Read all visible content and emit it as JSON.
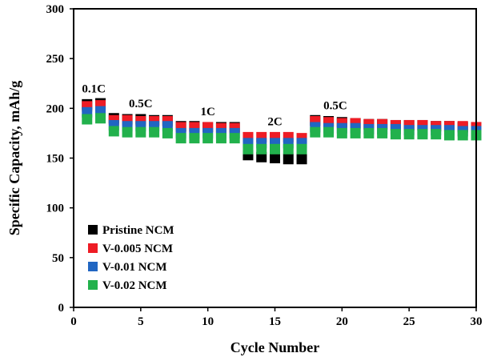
{
  "chart_data": {
    "type": "scatter",
    "xlabel": "Cycle Number",
    "ylabel": "Specific Capacity, mAh/g",
    "xlim": [
      0,
      30
    ],
    "ylim": [
      0,
      300
    ],
    "xticks": [
      0,
      5,
      10,
      15,
      20,
      25,
      30
    ],
    "yticks": [
      0,
      50,
      100,
      150,
      200,
      250,
      300
    ],
    "grid": false,
    "legend_position": "bottom-left",
    "x": [
      1,
      2,
      3,
      4,
      5,
      6,
      7,
      8,
      9,
      10,
      11,
      12,
      13,
      14,
      15,
      16,
      17,
      18,
      19,
      20,
      21,
      22,
      23,
      24,
      25,
      26,
      27,
      28,
      29,
      30
    ],
    "series": [
      {
        "name": "Pristine NCM",
        "color": "#000000",
        "values": [
          204,
          205,
          190,
          189,
          189,
          188,
          188,
          182,
          182,
          181,
          181,
          181,
          153,
          151,
          150,
          149,
          149,
          188,
          187,
          186,
          185,
          184,
          184,
          183,
          183,
          183,
          182,
          182,
          181,
          181
        ]
      },
      {
        "name": "V-0.005 NCM",
        "color": "#ee1c25",
        "values": [
          202,
          203,
          188,
          188,
          187,
          187,
          187,
          181,
          181,
          181,
          180,
          180,
          171,
          171,
          171,
          171,
          170,
          187,
          186,
          185,
          185,
          184,
          184,
          183,
          183,
          183,
          182,
          182,
          182,
          181
        ]
      },
      {
        "name": "V-0.01 NCM",
        "color": "#2166c2",
        "values": [
          196,
          197,
          183,
          182,
          182,
          182,
          182,
          175,
          175,
          175,
          175,
          175,
          165,
          165,
          165,
          165,
          165,
          181,
          180,
          180,
          180,
          179,
          179,
          179,
          178,
          178,
          178,
          178,
          177,
          177
        ]
      },
      {
        "name": "V-0.02 NCM",
        "color": "#22b14c",
        "values": [
          189,
          190,
          177,
          176,
          176,
          176,
          175,
          170,
          170,
          170,
          170,
          170,
          159,
          159,
          159,
          159,
          159,
          176,
          176,
          175,
          175,
          175,
          175,
          174,
          174,
          174,
          174,
          173,
          173,
          173
        ]
      }
    ],
    "annotations": [
      {
        "text": "0.1C",
        "x": 1.5,
        "y": 216
      },
      {
        "text": "0.5C",
        "x": 5,
        "y": 201
      },
      {
        "text": "1C",
        "x": 10,
        "y": 193
      },
      {
        "text": "2C",
        "x": 15,
        "y": 183
      },
      {
        "text": "0.5C",
        "x": 19.5,
        "y": 199
      }
    ]
  }
}
